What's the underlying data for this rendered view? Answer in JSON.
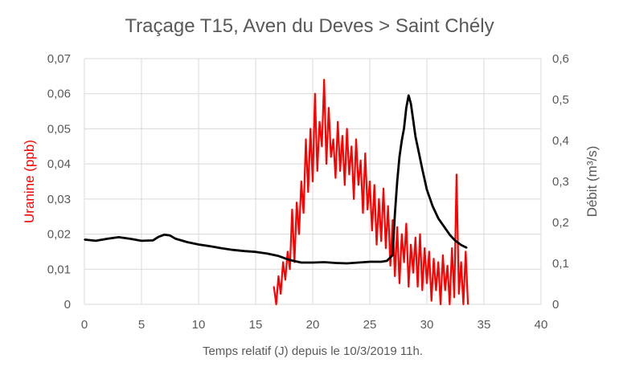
{
  "chart_data": {
    "type": "line",
    "title": "Traçage T15, Aven du Deves > Saint Chély",
    "xlabel": "Temps relatif (J) depuis le 10/3/2019 11h.",
    "ylabel_left": "Uranine (ppb)",
    "ylabel_right": "Débit (m³/s)",
    "xlim": [
      0,
      40
    ],
    "ylim_left": [
      0,
      0.07
    ],
    "ylim_right": [
      0,
      0.6
    ],
    "x_ticks": [
      "0",
      "5",
      "10",
      "15",
      "20",
      "25",
      "30",
      "35",
      "40"
    ],
    "y_left_ticks": [
      "0",
      "0,01",
      "0,02",
      "0,03",
      "0,04",
      "0,05",
      "0,06",
      "0,07"
    ],
    "y_right_ticks": [
      "0",
      "0,1",
      "0,2",
      "0,3",
      "0,4",
      "0,5",
      "0,6"
    ],
    "grid": true,
    "colors": {
      "uranine": "#ff0000",
      "debit": "#000000",
      "text": "#595959",
      "grid": "#d9d9d9"
    },
    "series": [
      {
        "axis": "left",
        "x": [
          16.6,
          16.8,
          17.0,
          17.2,
          17.4,
          17.6,
          17.8,
          18.0,
          18.2,
          18.4,
          18.6,
          18.8,
          19.0,
          19.2,
          19.4,
          19.6,
          19.8,
          20.0,
          20.2,
          20.4,
          20.6,
          20.8,
          21.0,
          21.2,
          21.4,
          21.6,
          21.8,
          22.0,
          22.2,
          22.4,
          22.6,
          22.8,
          23.0,
          23.2,
          23.4,
          23.6,
          23.8,
          24.0,
          24.2,
          24.4,
          24.6,
          24.8,
          25.0,
          25.2,
          25.4,
          25.6,
          25.8,
          26.0,
          26.2,
          26.4,
          26.6,
          26.8,
          27.0,
          27.2,
          27.4,
          27.6,
          27.8,
          28.0,
          28.2,
          28.4,
          28.6,
          28.8,
          29.0,
          29.2,
          29.4,
          29.6,
          29.8,
          30.0,
          30.2,
          30.4,
          30.6,
          30.8,
          31.0,
          31.2,
          31.4,
          31.6,
          31.8,
          32.0,
          32.2,
          32.4,
          32.6,
          32.8,
          33.0,
          33.2,
          33.4,
          33.6
        ],
        "values": [
          0.005,
          0.0,
          0.008,
          0.003,
          0.012,
          0.007,
          0.015,
          0.01,
          0.027,
          0.012,
          0.029,
          0.02,
          0.035,
          0.026,
          0.047,
          0.032,
          0.05,
          0.035,
          0.06,
          0.038,
          0.052,
          0.045,
          0.064,
          0.04,
          0.056,
          0.042,
          0.047,
          0.036,
          0.052,
          0.038,
          0.048,
          0.034,
          0.05,
          0.037,
          0.045,
          0.03,
          0.047,
          0.034,
          0.041,
          0.026,
          0.043,
          0.027,
          0.035,
          0.021,
          0.034,
          0.017,
          0.03,
          0.018,
          0.033,
          0.016,
          0.028,
          0.011,
          0.024,
          0.008,
          0.022,
          0.006,
          0.02,
          0.012,
          0.023,
          0.005,
          0.017,
          0.009,
          0.019,
          0.005,
          0.02,
          0.004,
          0.016,
          0.006,
          0.015,
          0.001,
          0.013,
          0.004,
          0.012,
          0.0,
          0.014,
          0.004,
          0.011,
          0.0,
          0.016,
          0.002,
          0.037,
          0.003,
          0.012,
          0.0,
          0.015,
          0.0
        ]
      },
      {
        "axis": "right",
        "x": [
          0,
          1,
          2,
          3,
          4,
          5,
          6,
          6.5,
          7,
          7.5,
          8,
          9,
          10,
          11,
          12,
          13,
          14,
          15,
          16,
          17,
          18,
          19,
          20,
          21,
          22,
          23,
          24,
          25,
          26,
          26.5,
          27,
          27.2,
          27.4,
          27.6,
          27.8,
          28,
          28.2,
          28.4,
          28.6,
          28.8,
          29,
          29.3,
          29.6,
          30,
          30.5,
          31,
          31.5,
          32,
          32.5,
          33,
          33.5
        ],
        "values": [
          0.158,
          0.155,
          0.16,
          0.164,
          0.16,
          0.155,
          0.156,
          0.165,
          0.17,
          0.168,
          0.16,
          0.152,
          0.146,
          0.142,
          0.137,
          0.133,
          0.13,
          0.128,
          0.124,
          0.118,
          0.108,
          0.102,
          0.102,
          0.103,
          0.101,
          0.1,
          0.102,
          0.104,
          0.104,
          0.106,
          0.12,
          0.22,
          0.3,
          0.36,
          0.4,
          0.43,
          0.48,
          0.51,
          0.49,
          0.45,
          0.41,
          0.37,
          0.33,
          0.28,
          0.24,
          0.21,
          0.19,
          0.17,
          0.155,
          0.145,
          0.138
        ]
      }
    ]
  }
}
